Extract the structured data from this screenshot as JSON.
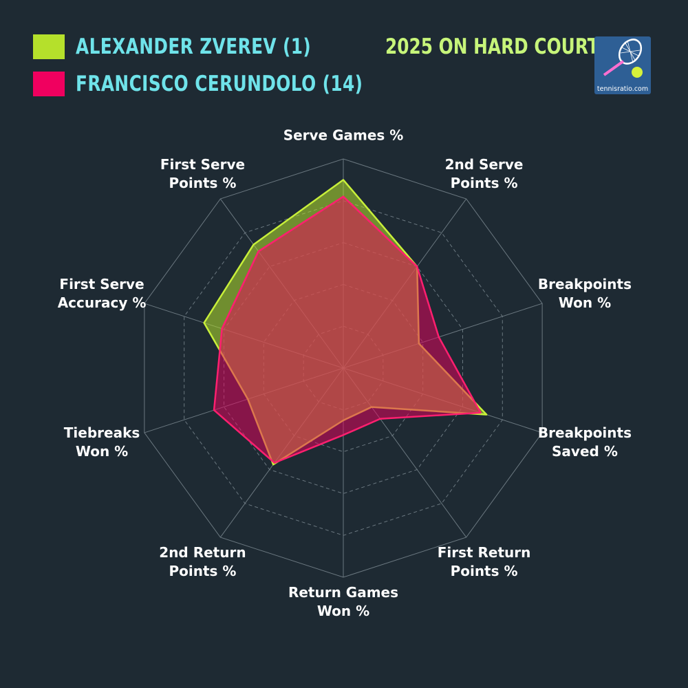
{
  "legend": [
    {
      "label": "ALEXANDER ZVEREV (1)",
      "color": "#b5e02b"
    },
    {
      "label": "FRANCISCO CERUNDOLO (14)",
      "color": "#f0005f"
    }
  ],
  "subtitle": "2025 ON HARD COURTS",
  "logo": {
    "text": "tennisratio.com",
    "icon": "tennis-racket-ball-icon"
  },
  "chart_data": {
    "type": "radar",
    "axes": [
      "Serve Games %",
      "2nd Serve\nPoints %",
      "Breakpoints\nWon %",
      "Breakpoints\nSaved %",
      "First Return\nPoints %",
      "Return Games\nWon %",
      "2nd Return\nPoints %",
      "Tiebreaks\nWon %",
      "First Serve\nAccuracy %",
      "First Serve\nPoints %"
    ],
    "rings": 5,
    "max": 1.0,
    "series": [
      {
        "name": "ALEXANDER ZVEREV (1)",
        "fill": "#b5e02b",
        "fill_opacity": 0.55,
        "stroke": "#c8f03a",
        "values": [
          0.9,
          0.6,
          0.38,
          0.72,
          0.23,
          0.25,
          0.57,
          0.48,
          0.7,
          0.73
        ]
      },
      {
        "name": "FRANCISCO CERUNDOLO (14)",
        "fill": "#f0005f",
        "fill_opacity": 0.5,
        "stroke": "#ff1f6f",
        "values": [
          0.82,
          0.6,
          0.48,
          0.69,
          0.3,
          0.32,
          0.56,
          0.65,
          0.61,
          0.69
        ]
      }
    ]
  }
}
